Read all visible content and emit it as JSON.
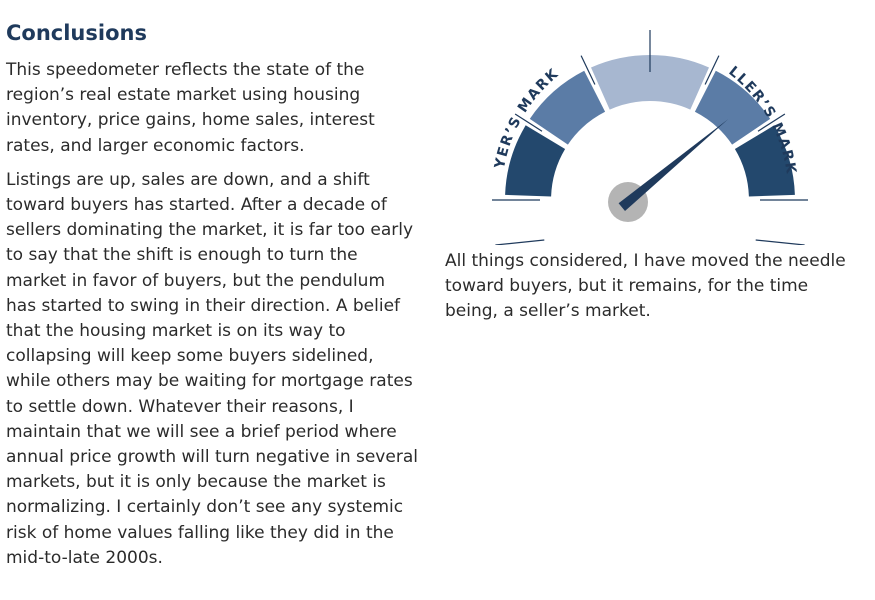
{
  "section": {
    "heading": "Conclusions",
    "paragraphs": [
      "This speedometer reflects the state of the region’s real estate market using housing inventory, price gains, home sales, interest rates, and larger economic factors.",
      "Listings are up, sales are down, and a shift toward buyers has started. After a decade of sellers dominating the market, it is far too early to say that the shift is enough to turn the market in favor of buyers, but the pendulum has started to swing in their direction. A belief that the housing market is on its way to collapsing will keep some buyers sidelined, while others may be waiting for mortgage rates to settle down. Whatever their reasons, I maintain that we will see a brief period where annual price growth will turn negative in several markets, but it is only because the market is normalizing. I certainly don’t see any systemic risk of home values falling like they did in the mid-to-late 2000s."
    ]
  },
  "gauge": {
    "left_label": "BUYER’S MARKET",
    "right_label": "SELLER’S MARKET",
    "needle_level": 0.78,
    "colors": {
      "dark": "#23486d",
      "mid": "#5b7ca6",
      "light": "#a7b7d0",
      "needle": "#1f3a5c",
      "hub": "#b4b4b4"
    }
  },
  "caption": "All things considered, I have moved the needle toward buyers, but it remains, for the time being, a seller’s market."
}
